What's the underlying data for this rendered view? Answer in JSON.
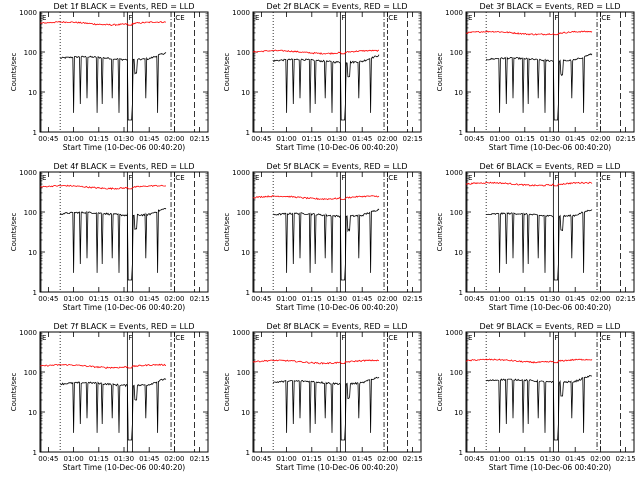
{
  "chart_data": [
    {
      "type": "line",
      "title": "Det 1f BLACK = Events, RED = LLD",
      "xlabel": "Start Time (10-Dec-06 00:40:20)",
      "ylabel": "Counts/sec",
      "yscale": "log",
      "ylim": [
        1,
        1000
      ],
      "xlim": [
        "00:40",
        "02:20"
      ],
      "x_ticks": [
        "00:45",
        "01:00",
        "01:15",
        "01:30",
        "01:45",
        "02:00",
        "02:15"
      ],
      "y_ticks": [
        "1",
        "10",
        "100",
        "1000"
      ],
      "markers": [
        "E",
        "F",
        "CE"
      ],
      "series": [
        {
          "name": "Events",
          "color": "#000000",
          "level": 70,
          "range": [
            "00:52",
            "01:55"
          ]
        },
        {
          "name": "LLD",
          "color": "#ff0000",
          "level": 520,
          "range": [
            "00:40",
            "01:55"
          ]
        }
      ]
    },
    {
      "type": "line",
      "title": "Det 2f BLACK = Events, RED = LLD",
      "xlabel": "Start Time (10-Dec-06 00:40:20)",
      "ylabel": "Counts/sec",
      "yscale": "log",
      "ylim": [
        1,
        1000
      ],
      "xlim": [
        "00:40",
        "02:20"
      ],
      "x_ticks": [
        "00:45",
        "01:00",
        "01:15",
        "01:30",
        "01:45",
        "02:00",
        "02:15"
      ],
      "y_ticks": [
        "1",
        "10",
        "100",
        "1000"
      ],
      "markers": [
        "E",
        "F",
        "CE"
      ],
      "series": [
        {
          "name": "Events",
          "color": "#000000",
          "level": 60,
          "range": [
            "00:52",
            "01:55"
          ]
        },
        {
          "name": "LLD",
          "color": "#ff0000",
          "level": 100,
          "range": [
            "00:40",
            "01:55"
          ]
        }
      ]
    },
    {
      "type": "line",
      "title": "Det 3f BLACK = Events, RED = LLD",
      "xlabel": "Start Time (10-Dec-06 00:40:20)",
      "ylabel": "Counts/sec",
      "yscale": "log",
      "ylim": [
        1,
        1000
      ],
      "xlim": [
        "00:40",
        "02:20"
      ],
      "x_ticks": [
        "00:45",
        "01:00",
        "01:15",
        "01:30",
        "01:45",
        "02:00",
        "02:15"
      ],
      "y_ticks": [
        "1",
        "10",
        "100",
        "1000"
      ],
      "markers": [
        "E",
        "F",
        "CE"
      ],
      "series": [
        {
          "name": "Events",
          "color": "#000000",
          "level": 65,
          "range": [
            "00:52",
            "01:55"
          ]
        },
        {
          "name": "LLD",
          "color": "#ff0000",
          "level": 300,
          "range": [
            "00:40",
            "01:55"
          ]
        }
      ]
    },
    {
      "type": "line",
      "title": "Det 4f BLACK = Events, RED = LLD",
      "xlabel": "Start Time (10-Dec-06 00:40:20)",
      "ylabel": "Counts/sec",
      "yscale": "log",
      "ylim": [
        1,
        1000
      ],
      "xlim": [
        "00:40",
        "02:20"
      ],
      "x_ticks": [
        "00:45",
        "01:00",
        "01:15",
        "01:30",
        "01:45",
        "02:00",
        "02:15"
      ],
      "y_ticks": [
        "1",
        "10",
        "100",
        "1000"
      ],
      "markers": [
        "E",
        "F",
        "CE"
      ],
      "series": [
        {
          "name": "Events",
          "color": "#000000",
          "level": 90,
          "range": [
            "00:52",
            "01:55"
          ]
        },
        {
          "name": "LLD",
          "color": "#ff0000",
          "level": 420,
          "range": [
            "00:40",
            "01:55"
          ]
        }
      ]
    },
    {
      "type": "line",
      "title": "Det 5f BLACK = Events, RED = LLD",
      "xlabel": "Start Time (10-Dec-06 00:40:20)",
      "ylabel": "Counts/sec",
      "yscale": "log",
      "ylim": [
        1,
        1000
      ],
      "xlim": [
        "00:40",
        "02:20"
      ],
      "x_ticks": [
        "00:45",
        "01:00",
        "01:15",
        "01:30",
        "01:45",
        "02:00",
        "02:15"
      ],
      "y_ticks": [
        "1",
        "10",
        "100",
        "1000"
      ],
      "markers": [
        "E",
        "F",
        "CE"
      ],
      "series": [
        {
          "name": "Events",
          "color": "#000000",
          "level": 85,
          "range": [
            "00:52",
            "01:55"
          ]
        },
        {
          "name": "LLD",
          "color": "#ff0000",
          "level": 230,
          "range": [
            "00:40",
            "01:55"
          ]
        }
      ]
    },
    {
      "type": "line",
      "title": "Det 6f BLACK = Events, RED = LLD",
      "xlabel": "Start Time (10-Dec-06 00:40:20)",
      "ylabel": "Counts/sec",
      "yscale": "log",
      "ylim": [
        1,
        1000
      ],
      "xlim": [
        "00:40",
        "02:20"
      ],
      "x_ticks": [
        "00:45",
        "01:00",
        "01:15",
        "01:30",
        "01:45",
        "02:00",
        "02:15"
      ],
      "y_ticks": [
        "1",
        "10",
        "100",
        "1000"
      ],
      "markers": [
        "E",
        "F",
        "CE"
      ],
      "series": [
        {
          "name": "Events",
          "color": "#000000",
          "level": 85,
          "range": [
            "00:52",
            "01:55"
          ]
        },
        {
          "name": "LLD",
          "color": "#ff0000",
          "level": 500,
          "range": [
            "00:40",
            "01:55"
          ]
        }
      ]
    },
    {
      "type": "line",
      "title": "Det 7f BLACK = Events, RED = LLD",
      "xlabel": "Start Time (10-Dec-06 00:40:20)",
      "ylabel": "Counts/sec",
      "yscale": "log",
      "ylim": [
        1,
        1000
      ],
      "xlim": [
        "00:40",
        "02:20"
      ],
      "x_ticks": [
        "00:45",
        "01:00",
        "01:15",
        "01:30",
        "01:45",
        "02:00",
        "02:15"
      ],
      "y_ticks": [
        "1",
        "10",
        "100",
        "1000"
      ],
      "markers": [
        "E",
        "F",
        "CE"
      ],
      "series": [
        {
          "name": "Events",
          "color": "#000000",
          "level": 50,
          "range": [
            "00:52",
            "01:55"
          ]
        },
        {
          "name": "LLD",
          "color": "#ff0000",
          "level": 140,
          "range": [
            "00:40",
            "01:55"
          ]
        }
      ]
    },
    {
      "type": "line",
      "title": "Det 8f BLACK = Events, RED = LLD",
      "xlabel": "Start Time (10-Dec-06 00:40:20)",
      "ylabel": "Counts/sec",
      "yscale": "log",
      "ylim": [
        1,
        1000
      ],
      "xlim": [
        "00:40",
        "02:20"
      ],
      "x_ticks": [
        "00:45",
        "01:00",
        "01:15",
        "01:30",
        "01:45",
        "02:00",
        "02:15"
      ],
      "y_ticks": [
        "1",
        "10",
        "100",
        "1000"
      ],
      "markers": [
        "E",
        "F",
        "CE"
      ],
      "series": [
        {
          "name": "Events",
          "color": "#000000",
          "level": 55,
          "range": [
            "00:52",
            "01:55"
          ]
        },
        {
          "name": "LLD",
          "color": "#ff0000",
          "level": 180,
          "range": [
            "00:40",
            "01:55"
          ]
        }
      ]
    },
    {
      "type": "line",
      "title": "Det 9f BLACK = Events, RED = LLD",
      "xlabel": "Start Time (10-Dec-06 00:40:20)",
      "ylabel": "Counts/sec",
      "yscale": "log",
      "ylim": [
        1,
        1000
      ],
      "xlim": [
        "00:40",
        "02:20"
      ],
      "x_ticks": [
        "00:45",
        "01:00",
        "01:15",
        "01:30",
        "01:45",
        "02:00",
        "02:15"
      ],
      "y_ticks": [
        "1",
        "10",
        "100",
        "1000"
      ],
      "markers": [
        "E",
        "F",
        "CE"
      ],
      "series": [
        {
          "name": "Events",
          "color": "#000000",
          "level": 60,
          "range": [
            "00:52",
            "01:55"
          ]
        },
        {
          "name": "LLD",
          "color": "#ff0000",
          "level": 190,
          "range": [
            "00:40",
            "01:55"
          ]
        }
      ]
    }
  ],
  "events": {
    "dropouts": [
      "01:00",
      "01:04",
      "01:08",
      "01:14",
      "01:17",
      "01:23",
      "01:27",
      "01:35",
      "01:43",
      "01:50"
    ],
    "F_window": [
      "01:32",
      "01:35"
    ],
    "E_line": "00:40",
    "dotted_line": "00:52",
    "dashdot_line": "01:58",
    "CE_line": "02:00",
    "dashed_line": "02:12"
  }
}
